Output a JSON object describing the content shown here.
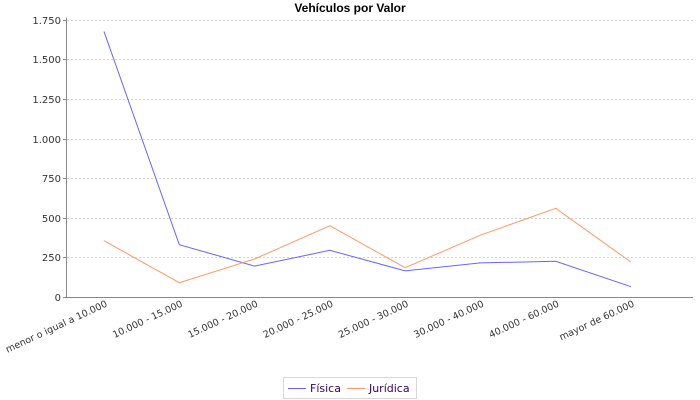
{
  "chart_data": {
    "type": "line",
    "title": "Vehículos por Valor",
    "xlabel": "",
    "ylabel": "",
    "categories": [
      "menor o igual a 10.000",
      "10.000 - 15.000",
      "15.000 - 20.000",
      "20.000 - 25.000",
      "25.000 - 30.000",
      "30.000 - 40.000",
      "40.000 - 60.000",
      "mayor de 60.000"
    ],
    "series": [
      {
        "name": "Física",
        "color": "#6666ff",
        "values": [
          1675,
          330,
          195,
          295,
          165,
          215,
          225,
          65
        ]
      },
      {
        "name": "Jurídica",
        "color": "#ff9966",
        "values": [
          355,
          90,
          240,
          450,
          185,
          390,
          560,
          220
        ]
      }
    ],
    "ylim": [
      0,
      1750
    ],
    "yticks": [
      0,
      250,
      500,
      750,
      1000,
      1250,
      1500,
      1750
    ],
    "ytick_labels": [
      "0",
      "250",
      "500",
      "750",
      "1.000",
      "1.250",
      "1.500",
      "1.750"
    ],
    "grid": "horizontal dashed",
    "legend_position": "bottom"
  },
  "legend": {
    "items": [
      {
        "label": "Física",
        "color": "#6666ff"
      },
      {
        "label": "Jurídica",
        "color": "#ff9966"
      }
    ]
  }
}
